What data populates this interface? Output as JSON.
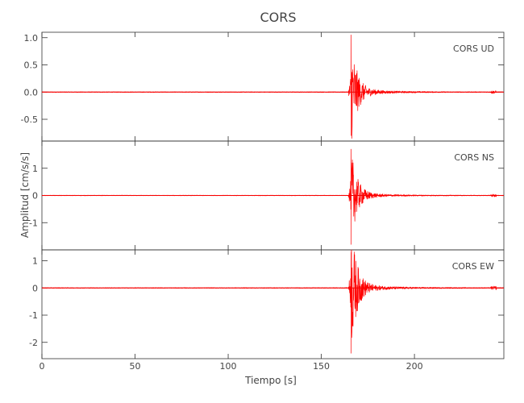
{
  "chart_data": {
    "type": "line",
    "title": "CORS",
    "xlabel": "Tiempo [s]",
    "ylabel": "Amplitud [cm/s/s]",
    "xlim": [
      0,
      248
    ],
    "x_ticks": [
      0,
      50,
      100,
      150,
      200
    ],
    "series_color": "#ff0000",
    "panels": [
      {
        "id": "ud",
        "label": "CORS   UD",
        "ylim": [
          -0.9,
          1.1
        ],
        "y_ticks": [
          1.0,
          0.5,
          0.0,
          -0.5
        ],
        "y_tick_labels": [
          "1.0",
          "0.5",
          "0.0",
          "-0.5"
        ],
        "event_time": 166,
        "peak_pos": 1.05,
        "peak_neg": -0.8,
        "series": [
          {
            "x": [
              160,
              162,
              164,
              165,
              165.5,
              166,
              166.5,
              167,
              168,
              170,
              175,
              180,
              190,
              200,
              243,
              245,
              248
            ],
            "y": [
              0.0,
              0.01,
              0.05,
              0.3,
              -0.4,
              1.05,
              -0.8,
              0.5,
              -0.3,
              0.15,
              0.06,
              0.03,
              0.01,
              0.0,
              0.02,
              0.0,
              0.0
            ]
          }
        ]
      },
      {
        "id": "ns",
        "label": "CORS   NS",
        "ylim": [
          -2.0,
          2.0
        ],
        "y_ticks": [
          1,
          0,
          -1
        ],
        "y_tick_labels": [
          "1",
          "0",
          "-1"
        ],
        "event_time": 166,
        "peak_pos": 1.7,
        "peak_neg": -1.8,
        "series": [
          {
            "x": [
              160,
              162,
              164,
              165,
              165.5,
              166,
              166.5,
              167,
              168,
              170,
              175,
              180,
              190,
              200,
              243,
              245,
              248
            ],
            "y": [
              0.0,
              0.01,
              0.05,
              0.3,
              -0.5,
              1.7,
              -1.8,
              0.8,
              -0.4,
              0.2,
              0.08,
              0.04,
              0.01,
              0.0,
              0.03,
              0.0,
              0.0
            ]
          }
        ]
      },
      {
        "id": "ew",
        "label": "CORS   EW",
        "ylim": [
          -2.6,
          1.4
        ],
        "y_ticks": [
          1,
          0,
          -1,
          -2
        ],
        "y_tick_labels": [
          "1",
          "0",
          "-1",
          "-2"
        ],
        "event_time": 166,
        "peak_pos": 1.3,
        "peak_neg": -2.4,
        "series": [
          {
            "x": [
              160,
              162,
              164,
              165,
              165.5,
              166,
              166.5,
              167,
              168,
              170,
              175,
              180,
              190,
              200,
              243,
              245,
              248
            ],
            "y": [
              0.0,
              0.01,
              0.05,
              0.3,
              -0.5,
              1.3,
              -2.4,
              0.7,
              -0.4,
              0.2,
              0.08,
              0.04,
              0.01,
              0.0,
              0.03,
              0.0,
              0.0
            ]
          }
        ]
      }
    ]
  }
}
